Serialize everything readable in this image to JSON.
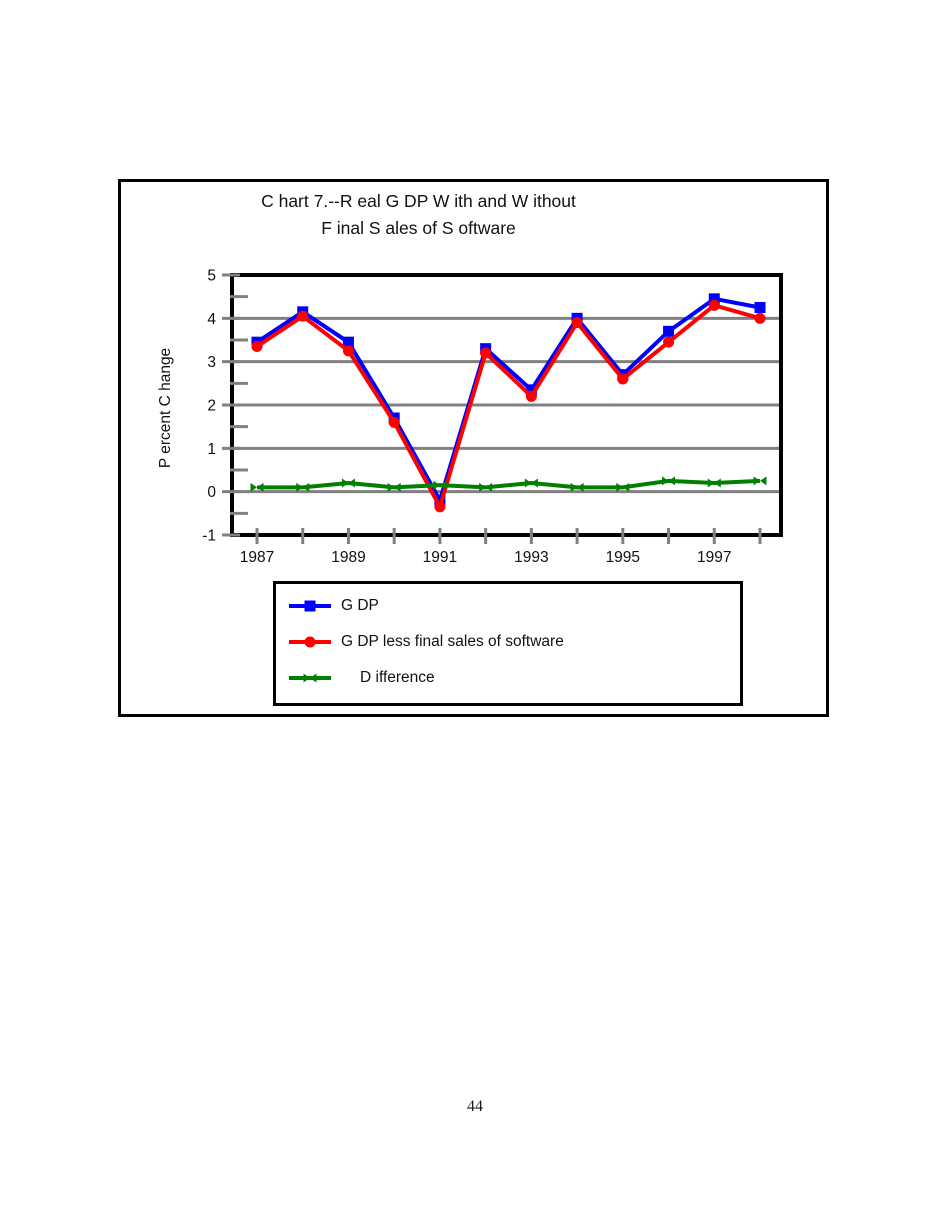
{
  "page": {
    "number": "44"
  },
  "chart_data": {
    "type": "line",
    "title": "Chart 7.--Real GDP With and Without Final Sales of Software",
    "title_line1": "C hart 7.--R eal G DP W ith and W ithout",
    "title_line2": "F inal S ales of S oftware",
    "ylabel": "Percent Change",
    "ylabel_rendered": "P ercent C hange",
    "xlabel": "",
    "ylim": [
      -1,
      5
    ],
    "y_ticks": [
      5,
      4,
      3,
      2,
      1,
      0,
      -1
    ],
    "y_minor_ticks": [
      4.5,
      3.5,
      2.5,
      1.5,
      0.5,
      -0.5
    ],
    "gridlines_at": [
      4,
      3,
      2,
      1,
      0
    ],
    "grid": "horizontal gray lines at integer values",
    "x": [
      1987,
      1988,
      1989,
      1990,
      1991,
      1992,
      1993,
      1994,
      1995,
      1996,
      1997,
      1998
    ],
    "x_tick_labels": [
      "1987",
      "1989",
      "1991",
      "1993",
      "1995",
      "1997"
    ],
    "legend_position": "boxed, below plot",
    "series": [
      {
        "key": "gdp",
        "name": "GDP",
        "label": "G DP",
        "color": "#0000ff",
        "marker": "square",
        "values": [
          3.45,
          4.15,
          3.45,
          1.7,
          -0.2,
          3.3,
          2.35,
          4.0,
          2.7,
          3.7,
          4.45,
          4.25
        ]
      },
      {
        "key": "gdp-less-software",
        "name": "GDP less final sales of software",
        "label": "G DP less final sales of software",
        "color": "#ff0000",
        "marker": "circle",
        "values": [
          3.35,
          4.05,
          3.25,
          1.6,
          -0.35,
          3.2,
          2.2,
          3.9,
          2.6,
          3.45,
          4.3,
          4.0
        ]
      },
      {
        "key": "difference",
        "name": "Difference",
        "label": "D ifference",
        "color": "#008000",
        "marker": "bowtie",
        "values": [
          0.1,
          0.1,
          0.2,
          0.1,
          0.15,
          0.1,
          0.2,
          0.1,
          0.1,
          0.25,
          0.2,
          0.25
        ]
      }
    ],
    "colors": {
      "frame": "#000000",
      "gridline": "#808080",
      "tick": "#808080",
      "text": "#111111"
    }
  }
}
